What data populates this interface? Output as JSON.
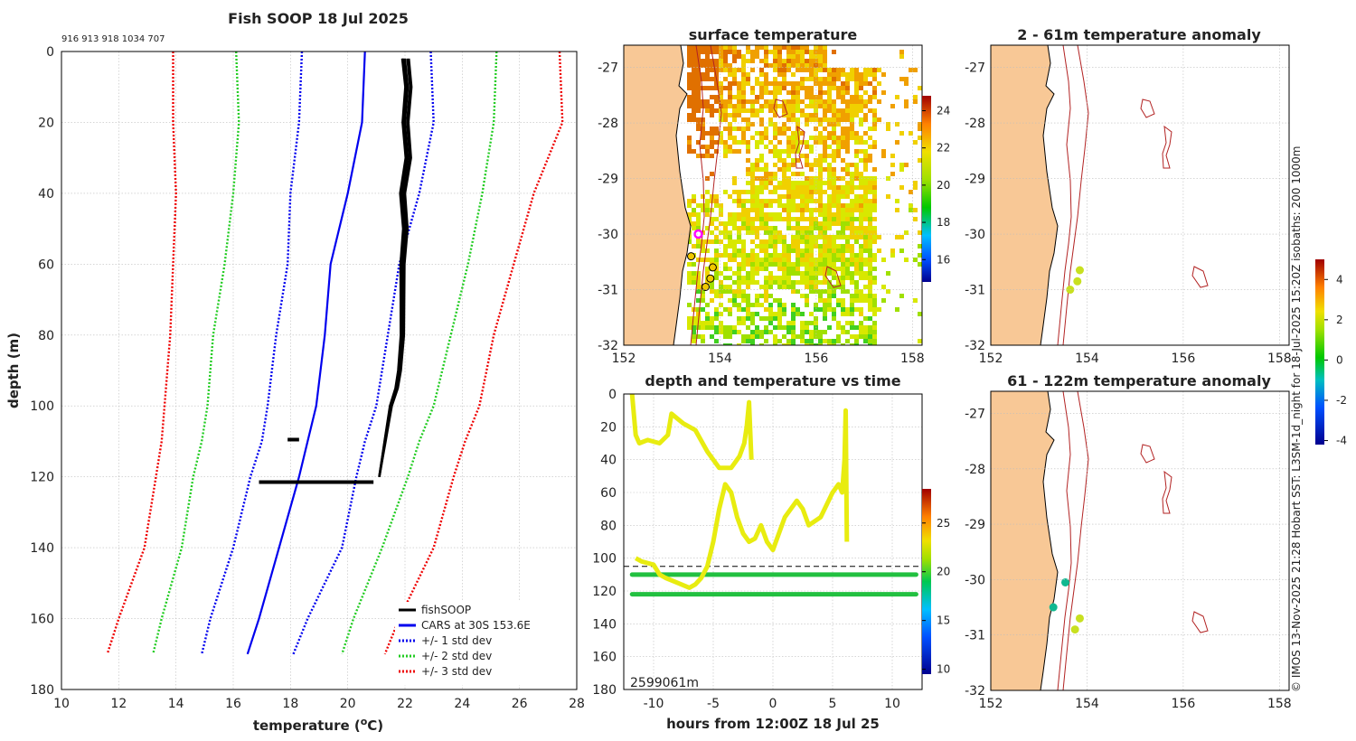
{
  "profile_panel": {
    "title": "Fish SOOP 18 Jul 2025",
    "header_ids": "916 913 918 1034 707",
    "xlabel": "temperature (°C)",
    "ylabel": "depth (m)",
    "legend": [
      "fishSOOP",
      "CARS at 30S 153.6E",
      "+/- 1 std dev",
      "+/- 2 std dev",
      "+/- 3 std dev"
    ]
  },
  "sst_panel": {
    "title": "surface temperature"
  },
  "anom_top_panel": {
    "title": "2 - 61m temperature anomaly"
  },
  "anom_bottom_panel": {
    "title": "61 - 122m temperature anomaly"
  },
  "time_panel": {
    "title": "depth and temperature vs time",
    "xlabel": "hours from 12:00Z 18 Jul 25",
    "overlay_text": "2599061m"
  },
  "side_text": "© IMOS 13-Nov-2025 21:28 Hobart SST: L3SM-1d_night for 18-Jul-2025 15:20Z isobaths: 200  1000m",
  "colors": {
    "fishsoop": "#000000",
    "cars": "#0000ee",
    "std1": "#0000ee",
    "std2": "#22cc22",
    "std3": "#ee0000",
    "land": "#f8c896",
    "coast": "#000000",
    "isobath": "#b22222",
    "sst_mark": "#ff00ff"
  },
  "chart_data": [
    {
      "type": "line",
      "name": "profile",
      "xlim": [
        10,
        28
      ],
      "ylim": [
        180,
        0
      ],
      "xticks": [
        10,
        12,
        14,
        16,
        18,
        20,
        22,
        24,
        26,
        28
      ],
      "yticks": [
        0,
        20,
        40,
        60,
        80,
        100,
        120,
        140,
        160,
        180
      ],
      "depth": [
        0,
        20,
        40,
        60,
        80,
        100,
        110,
        120,
        140,
        160,
        170
      ],
      "series": [
        {
          "name": "CARS at 30S 153.6E",
          "values": [
            20.6,
            20.5,
            20.0,
            19.4,
            19.2,
            18.9,
            18.6,
            18.3,
            17.6,
            16.9,
            16.5
          ]
        },
        {
          "name": "+1 std",
          "values": [
            22.9,
            23.0,
            22.5,
            21.8,
            21.4,
            21.0,
            20.6,
            20.3,
            19.8,
            18.6,
            18.1
          ]
        },
        {
          "name": "-1 std",
          "values": [
            18.4,
            18.3,
            18.0,
            17.9,
            17.5,
            17.2,
            17.0,
            16.6,
            16.0,
            15.2,
            14.9
          ]
        },
        {
          "name": "+2 std",
          "values": [
            25.2,
            25.1,
            24.7,
            24.2,
            23.6,
            23.0,
            22.5,
            22.1,
            21.2,
            20.2,
            19.8
          ]
        },
        {
          "name": "-2 std",
          "values": [
            16.1,
            16.2,
            16.0,
            15.7,
            15.3,
            15.1,
            14.9,
            14.6,
            14.2,
            13.5,
            13.2
          ]
        },
        {
          "name": "+3 std",
          "values": [
            27.4,
            27.5,
            26.5,
            25.8,
            25.1,
            24.6,
            24.1,
            23.7,
            23.0,
            21.8,
            21.3
          ]
        },
        {
          "name": "-3 std",
          "values": [
            13.9,
            13.9,
            14.0,
            13.9,
            13.8,
            13.6,
            13.5,
            13.3,
            12.9,
            12.0,
            11.6
          ]
        }
      ],
      "fishsoop": {
        "depth": [
          2,
          10,
          20,
          30,
          40,
          50,
          60,
          70,
          80,
          90,
          95,
          100,
          105,
          110,
          115,
          120
        ],
        "temp": [
          22.0,
          22.1,
          22.0,
          22.1,
          21.9,
          22.0,
          21.9,
          21.9,
          21.9,
          21.8,
          21.7,
          21.5,
          21.4,
          21.3,
          21.2,
          21.1
        ],
        "spike_121m": {
          "depth": 121.5,
          "tmin": 16.9,
          "tmax": 20.9
        },
        "spike_110m": {
          "depth": 109.5,
          "tmin": 17.9,
          "tmax": 18.3
        }
      }
    },
    {
      "type": "heatmap",
      "name": "surface temperature",
      "xlim": [
        152,
        158.2
      ],
      "ylim": [
        -32,
        -26.6
      ],
      "xticks": [
        152,
        154,
        156,
        158
      ],
      "yticks": [
        -27,
        -28,
        -29,
        -30,
        -31,
        -32
      ],
      "colorbar": {
        "min": 14.8,
        "max": 24.8,
        "ticks": [
          16,
          18,
          20,
          22,
          24
        ]
      },
      "stations": [
        {
          "lon": 153.55,
          "lat": -30.0
        },
        {
          "lon": 153.4,
          "lat": -30.4
        },
        {
          "lon": 153.85,
          "lat": -30.6
        },
        {
          "lon": 153.8,
          "lat": -30.8
        },
        {
          "lon": 153.7,
          "lat": -30.95
        }
      ]
    },
    {
      "type": "line",
      "name": "depth and temperature vs time",
      "xlim": [
        -12.5,
        12.5
      ],
      "ylim": [
        180,
        0
      ],
      "xticks": [
        -10,
        -5,
        0,
        5,
        10
      ],
      "yticks": [
        0,
        20,
        40,
        60,
        80,
        100,
        120,
        140,
        160,
        180
      ],
      "reference_depth": 105,
      "colorbar": {
        "min": 9.5,
        "max": 28.5,
        "ticks": [
          10,
          15,
          20,
          25
        ]
      },
      "tracks": [
        {
          "temp": 22,
          "t": [
            -11.8,
            -11.5,
            -11.2,
            -10.5,
            -9.5,
            -8.8,
            -8.5,
            -8.0,
            -7.5,
            -7.0,
            -6.5,
            -5.5,
            -4.5,
            -3.5,
            -2.8,
            -2.4,
            -2.2,
            -2.0,
            -1.8
          ],
          "d": [
            0,
            25,
            30,
            28,
            30,
            25,
            12,
            15,
            18,
            20,
            22,
            35,
            45,
            45,
            38,
            30,
            20,
            5,
            40
          ]
        },
        {
          "temp": 22,
          "t": [
            -11.5,
            -11.0,
            -10.0,
            -9.5,
            -9.0,
            -8.0,
            -7.0,
            -6.5,
            -6.0,
            -5.5,
            -5.0,
            -4.5,
            -4.0,
            -3.5,
            -3.0,
            -2.5,
            -2.0,
            -1.5,
            -1.0,
            -0.5,
            0.0,
            0.5,
            1.0,
            1.5,
            2.0,
            2.5,
            3.0,
            4.0,
            5.0,
            5.5,
            5.8,
            6.0,
            6.1,
            6.2
          ],
          "d": [
            100,
            102,
            104,
            110,
            112,
            115,
            118,
            116,
            112,
            105,
            90,
            70,
            55,
            60,
            75,
            85,
            90,
            88,
            80,
            90,
            95,
            85,
            75,
            70,
            65,
            70,
            80,
            75,
            60,
            55,
            60,
            40,
            10,
            90
          ]
        }
      ],
      "constant_tracks": [
        {
          "depth": 110,
          "temp": 19.2
        },
        {
          "depth": 122,
          "temp": 19.5
        }
      ]
    },
    {
      "type": "scatter",
      "name": "2 - 61m temperature anomaly",
      "xlim": [
        152,
        158.2
      ],
      "ylim": [
        -32,
        -26.6
      ],
      "xticks": [
        152,
        154,
        156,
        158
      ],
      "yticks": [
        -27,
        -28,
        -29,
        -30,
        -31,
        -32
      ],
      "points": [
        {
          "lon": 153.85,
          "lat": -30.65,
          "anom": 1.7
        },
        {
          "lon": 153.8,
          "lat": -30.85,
          "anom": 1.4
        },
        {
          "lon": 153.65,
          "lat": -31.0,
          "anom": 1.2
        }
      ],
      "colorbar": {
        "min": -4.2,
        "max": 5.0,
        "ticks": [
          -4,
          -2,
          0,
          2,
          4
        ]
      }
    },
    {
      "type": "scatter",
      "name": "61 - 122m temperature anomaly",
      "xlim": [
        152,
        158.2
      ],
      "ylim": [
        -32,
        -26.6
      ],
      "xticks": [
        152,
        154,
        156,
        158
      ],
      "yticks": [
        -27,
        -28,
        -29,
        -30,
        -31,
        -32
      ],
      "points": [
        {
          "lon": 153.55,
          "lat": -30.05,
          "anom": -0.7
        },
        {
          "lon": 153.3,
          "lat": -30.5,
          "anom": -1.0
        },
        {
          "lon": 153.85,
          "lat": -30.7,
          "anom": 1.6
        },
        {
          "lon": 153.75,
          "lat": -30.9,
          "anom": 1.4
        }
      ]
    }
  ]
}
